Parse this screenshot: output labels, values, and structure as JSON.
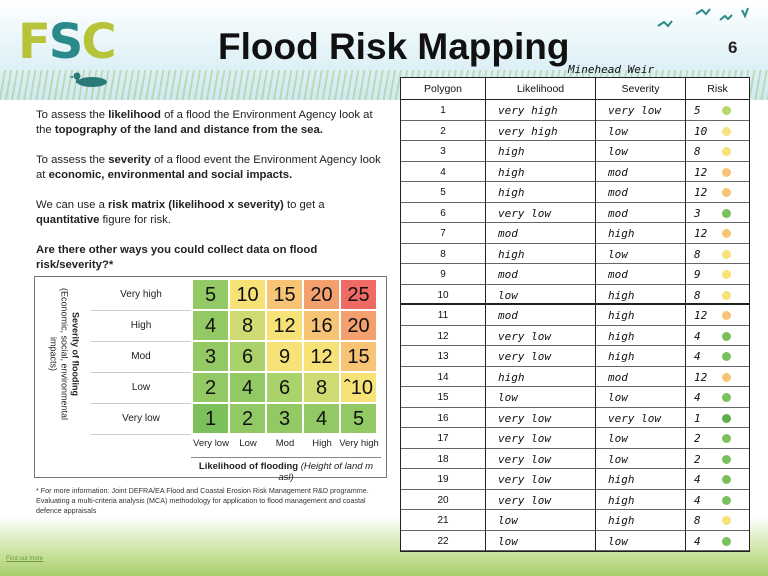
{
  "header": {
    "logo_text_a": "F",
    "logo_text_b": "S",
    "logo_text_c": "C",
    "title": "Flood Risk Mapping",
    "page_number": "6",
    "handwritten_label": "Minehead Weir"
  },
  "intro": {
    "p1_pre": "To assess the ",
    "p1_b1": "likelihood",
    "p1_mid": " of a flood the Environment Agency look at the ",
    "p1_b2": "topography of the land and distance from the sea.",
    "p2_pre": "To assess the ",
    "p2_b1": "severity",
    "p2_mid": " of a flood event the Environment Agency look at ",
    "p2_b2": "economic, environmental and social impacts.",
    "p3_pre": "We can use a ",
    "p3_b1": "risk matrix (likelihood x severity)",
    "p3_mid": " to get a ",
    "p3_b2": "quantitative",
    "p3_end": " figure for risk.",
    "question": "Are there other ways you could collect data on flood risk/severity?*"
  },
  "matrix": {
    "y_title": "Severity of flooding",
    "y_sub": "(Economic, social, environmental impacts)",
    "rows": [
      "Very high",
      "High",
      "Mod",
      "Low",
      "Very low"
    ],
    "cols": [
      "Very low",
      "Low",
      "Mod",
      "High",
      "Very high"
    ],
    "values": [
      [
        "5",
        "10",
        "15",
        "20",
        "25"
      ],
      [
        "4",
        "8",
        "12",
        "16",
        "20"
      ],
      [
        "3",
        "6",
        "9",
        "12",
        "15"
      ],
      [
        "2",
        "4",
        "6",
        "8",
        "ˆ10"
      ],
      [
        "1",
        "2",
        "3",
        "4",
        "5"
      ]
    ],
    "colors": [
      [
        "#92c964",
        "#f6e277",
        "#f6c474",
        "#f4a06e",
        "#ef6a64"
      ],
      [
        "#92c964",
        "#cfdb72",
        "#f6e277",
        "#f6c474",
        "#f4a06e"
      ],
      [
        "#92c964",
        "#aad26a",
        "#f6e277",
        "#f6e277",
        "#f6c474"
      ],
      [
        "#92c964",
        "#92c964",
        "#aad26a",
        "#cfdb72",
        "#f6e277"
      ],
      [
        "#7cc05c",
        "#92c964",
        "#92c964",
        "#92c964",
        "#92c964"
      ]
    ],
    "x_title": "Likelihood of flooding",
    "x_sub": "(Height of land m asl)"
  },
  "footnote": "* For more information: Joint DEFRA/EA Flood and Coastal Erosion Risk Management R&D programme. Evaluating a multi-criteria analysis (MCA)  methodology for application to flood management and coastal defence appraisals",
  "corner_link": "Find out more",
  "table": {
    "headers": [
      "Polygon",
      "Likelihood",
      "Severity",
      "Risk"
    ],
    "rows": [
      {
        "polygon": "1",
        "likelihood": "very high",
        "severity": "very low",
        "risk": "5",
        "dot": "#b7d96a"
      },
      {
        "polygon": "2",
        "likelihood": "very high",
        "severity": "low",
        "risk": "10",
        "dot": "#f6e27f"
      },
      {
        "polygon": "3",
        "likelihood": "high",
        "severity": "low",
        "risk": "8",
        "dot": "#f6e277"
      },
      {
        "polygon": "4",
        "likelihood": "high",
        "severity": "mod",
        "risk": "12",
        "dot": "#f6c474"
      },
      {
        "polygon": "5",
        "likelihood": "high",
        "severity": "mod",
        "risk": "12",
        "dot": "#f6c474"
      },
      {
        "polygon": "6",
        "likelihood": "very low",
        "severity": "mod",
        "risk": "3",
        "dot": "#7cc05c"
      },
      {
        "polygon": "7",
        "likelihood": "mod",
        "severity": "high",
        "risk": "12",
        "dot": "#f6c474"
      },
      {
        "polygon": "8",
        "likelihood": "high",
        "severity": "low",
        "risk": "8",
        "dot": "#f6e277"
      },
      {
        "polygon": "9",
        "likelihood": "mod",
        "severity": "mod",
        "risk": "9",
        "dot": "#f6e277"
      },
      {
        "polygon": "10",
        "likelihood": "low",
        "severity": "high",
        "risk": "8",
        "dot": "#f6e277"
      },
      {
        "polygon": "11",
        "likelihood": "mod",
        "severity": "high",
        "risk": "12",
        "dot": "#f6c474"
      },
      {
        "polygon": "12",
        "likelihood": "very low",
        "severity": "high",
        "risk": "4",
        "dot": "#7cc05c"
      },
      {
        "polygon": "13",
        "likelihood": "very low",
        "severity": "high",
        "risk": "4",
        "dot": "#7cc05c"
      },
      {
        "polygon": "14",
        "likelihood": "high",
        "severity": "mod",
        "risk": "12",
        "dot": "#f6c474"
      },
      {
        "polygon": "15",
        "likelihood": "low",
        "severity": "low",
        "risk": "4",
        "dot": "#7cc05c"
      },
      {
        "polygon": "16",
        "likelihood": "very low",
        "severity": "very low",
        "risk": "1",
        "dot": "#5fae4c"
      },
      {
        "polygon": "17",
        "likelihood": "very low",
        "severity": "low",
        "risk": "2",
        "dot": "#7cc05c"
      },
      {
        "polygon": "18",
        "likelihood": "very low",
        "severity": "low",
        "risk": "2",
        "dot": "#7cc05c"
      },
      {
        "polygon": "19",
        "likelihood": "very low",
        "severity": "high",
        "risk": "4",
        "dot": "#7cc05c"
      },
      {
        "polygon": "20",
        "likelihood": "very low",
        "severity": "high",
        "risk": "4",
        "dot": "#7cc05c"
      },
      {
        "polygon": "21",
        "likelihood": "low",
        "severity": "high",
        "risk": "8",
        "dot": "#f6e277"
      },
      {
        "polygon": "22",
        "likelihood": "low",
        "severity": "low",
        "risk": "4",
        "dot": "#7cc05c"
      }
    ]
  }
}
